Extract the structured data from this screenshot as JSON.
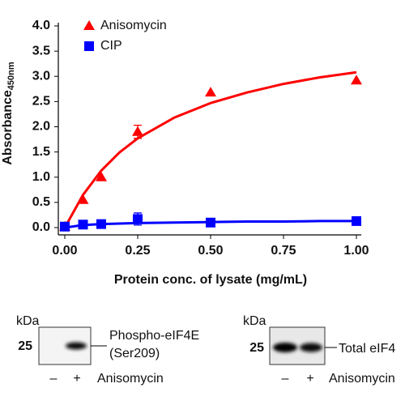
{
  "chart_data": {
    "type": "scatter",
    "x_label": "Protein conc. of lysate (mg/mL)",
    "y_label": "Absorbance",
    "y_label_sub": "450nm",
    "xlim": [
      0,
      1.0
    ],
    "ylim": [
      0,
      4.0
    ],
    "xticks": [
      {
        "value": 0,
        "label": "0.00"
      },
      0.25,
      {
        "value": 0.5,
        "label": "0.50"
      },
      0.75,
      {
        "value": 1,
        "label": "1.00"
      }
    ],
    "yticks": [
      {
        "value": 0,
        "label": "0.0"
      },
      0.5,
      {
        "value": 1,
        "label": "1.0"
      },
      1.5,
      {
        "value": 2,
        "label": "2.0"
      },
      2.5,
      {
        "value": 3,
        "label": "3.0"
      },
      3.5,
      {
        "value": 4,
        "label": "4.0"
      }
    ],
    "legend": "top-left",
    "series": [
      {
        "name": "Anisomycin",
        "color": "#ff0000",
        "marker": "triangle",
        "x": [
          0,
          0.0625,
          0.125,
          0.25,
          0.5,
          1.0
        ],
        "values": [
          0.02,
          0.55,
          1.0,
          1.9,
          2.68,
          2.92
        ],
        "errors": [
          null,
          null,
          null,
          0.13,
          null,
          null
        ],
        "fit": {
          "x": [
            0,
            0.0625,
            0.125,
            0.1875,
            0.25,
            0.375,
            0.5,
            0.625,
            0.75,
            0.875,
            1.0
          ],
          "values": [
            0,
            0.65,
            1.13,
            1.49,
            1.77,
            2.18,
            2.47,
            2.68,
            2.85,
            2.98,
            3.08
          ]
        }
      },
      {
        "name": "CIP",
        "color": "#0000ff",
        "marker": "square",
        "x": [
          0,
          0.0625,
          0.125,
          0.25,
          0.5,
          1.0
        ],
        "values": [
          0.02,
          0.06,
          0.07,
          0.17,
          0.1,
          0.13
        ],
        "errors": [
          null,
          null,
          null,
          0.12,
          null,
          null
        ],
        "fit": {
          "x": [
            0,
            0.0625,
            0.125,
            0.1875,
            0.25,
            0.375,
            0.5,
            0.625,
            0.75,
            0.875,
            1.0
          ],
          "values": [
            0.0,
            0.05,
            0.07,
            0.08,
            0.09,
            0.1,
            0.11,
            0.12,
            0.12,
            0.13,
            0.13
          ]
        }
      }
    ]
  },
  "blots": [
    {
      "unit": "kDa",
      "marker": 25,
      "label_lines": [
        "Phospho-eIF4E",
        "(Ser209)"
      ],
      "lanes": [
        "–",
        "+"
      ],
      "treatment": "Anisomycin"
    },
    {
      "unit": "kDa",
      "marker": 25,
      "label_lines": [
        "Total eIF4"
      ],
      "lanes": [
        "–",
        "+"
      ],
      "treatment": "Anisomycin"
    }
  ]
}
